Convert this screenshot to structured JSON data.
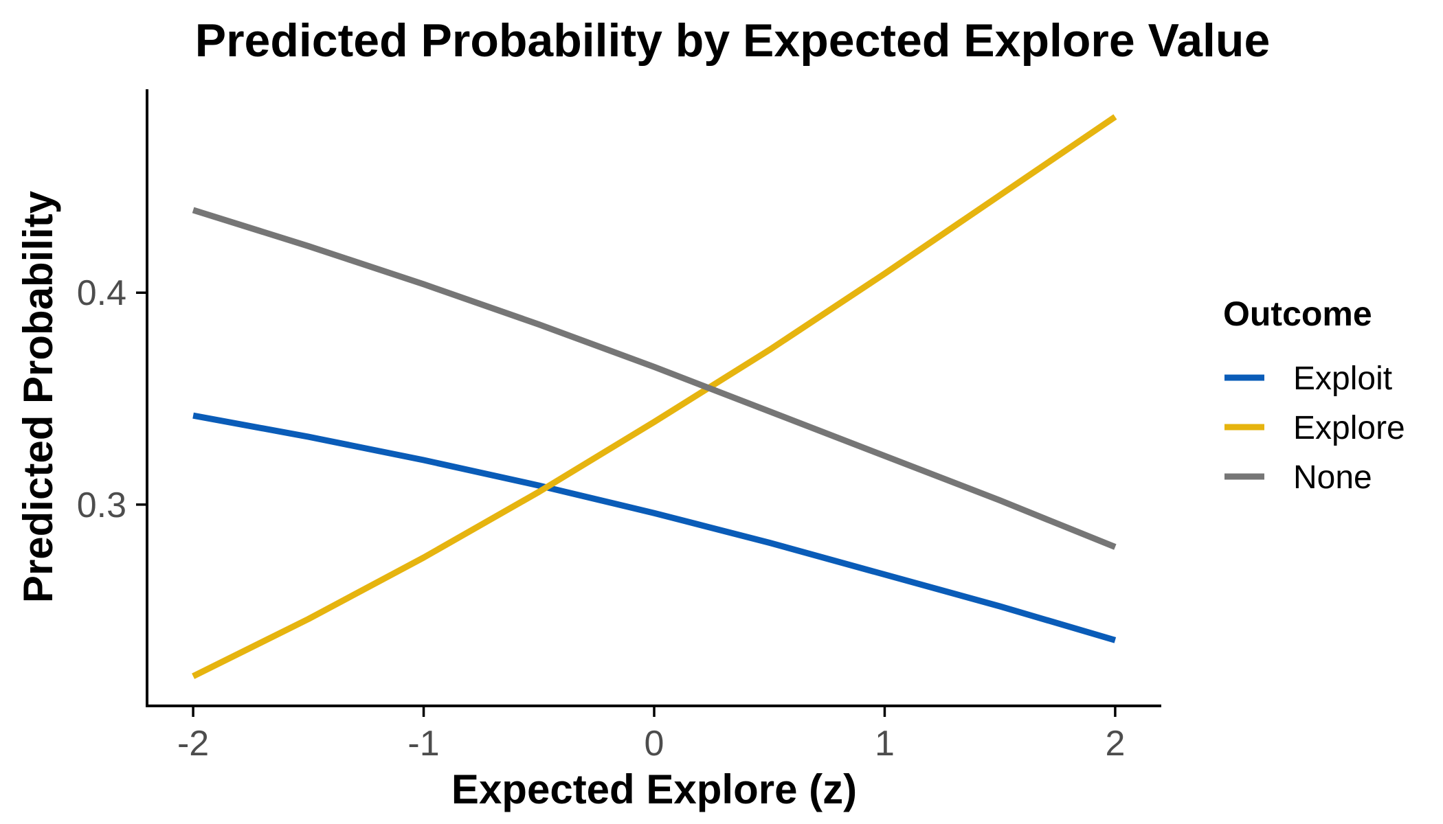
{
  "chart_data": {
    "type": "line",
    "title": "Predicted Probability by Expected Explore Value",
    "xlabel": "Expected Explore (z)",
    "ylabel": "Predicted Probability",
    "xlim": [
      -2.2,
      2.2
    ],
    "ylim": [
      0.205,
      0.496
    ],
    "xticks": [
      -2,
      -1,
      0,
      1,
      2
    ],
    "xtick_labels": [
      "-2",
      "-1",
      "0",
      "1",
      "2"
    ],
    "yticks": [
      0.3,
      0.4
    ],
    "ytick_labels": [
      "0.3",
      "0.4"
    ],
    "grid": false,
    "legend": {
      "title": "Outcome",
      "placement": "right"
    },
    "x": [
      -2,
      -1.5,
      -1,
      -0.5,
      0,
      0.5,
      1,
      1.5,
      2
    ],
    "series": [
      {
        "name": "Exploit",
        "color": "#0A5CB8",
        "values": [
          0.342,
          0.332,
          0.321,
          0.309,
          0.296,
          0.282,
          0.267,
          0.252,
          0.236
        ]
      },
      {
        "name": "Explore",
        "color": "#E6B40F",
        "values": [
          0.219,
          0.246,
          0.275,
          0.306,
          0.339,
          0.373,
          0.409,
          0.446,
          0.483
        ]
      },
      {
        "name": "None",
        "color": "#767676",
        "values": [
          0.439,
          0.422,
          0.404,
          0.385,
          0.365,
          0.344,
          0.323,
          0.302,
          0.28
        ]
      }
    ]
  }
}
